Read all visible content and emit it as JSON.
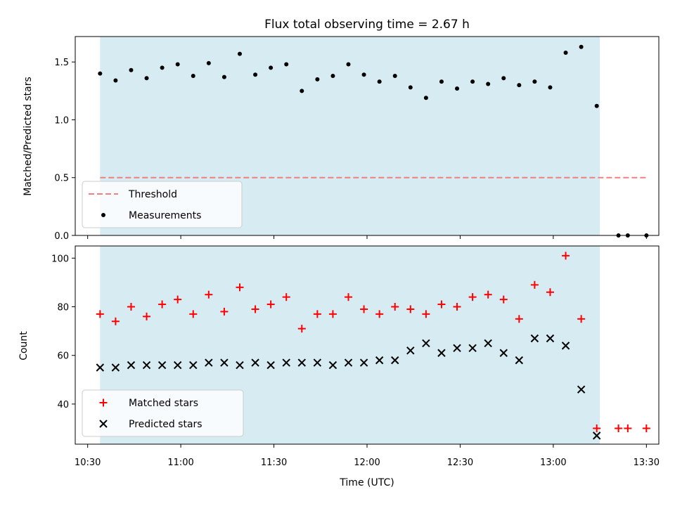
{
  "chart_data": {
    "title": "Flux total observing time = 2.67 h",
    "xlabel": "Time (UTC)",
    "xlim": [
      "10:26",
      "13:34"
    ],
    "x_ticks": [
      "10:30",
      "11:00",
      "11:30",
      "12:00",
      "12:30",
      "13:00",
      "13:30"
    ],
    "observing_window": {
      "start": "10:34",
      "end": "13:15",
      "color": "#add8e6"
    },
    "subplots": [
      {
        "type": "scatter",
        "ylabel": "Matched/Predicted stars",
        "ylim": [
          0,
          1.72
        ],
        "y_ticks": [
          0.0,
          0.5,
          1.0,
          1.5
        ],
        "legend_position": "lower-left",
        "threshold": {
          "name": "Threshold",
          "value": 0.5,
          "x_start": "10:34",
          "x_end": "13:30",
          "color": "#f08080",
          "style": "dashed"
        },
        "series": [
          {
            "name": "Measurements",
            "marker": "dot",
            "color": "#000000",
            "points": [
              [
                "10:34",
                1.4
              ],
              [
                "10:39",
                1.34
              ],
              [
                "10:44",
                1.43
              ],
              [
                "10:49",
                1.36
              ],
              [
                "10:54",
                1.45
              ],
              [
                "10:59",
                1.48
              ],
              [
                "11:04",
                1.38
              ],
              [
                "11:09",
                1.49
              ],
              [
                "11:14",
                1.37
              ],
              [
                "11:19",
                1.57
              ],
              [
                "11:24",
                1.39
              ],
              [
                "11:29",
                1.45
              ],
              [
                "11:34",
                1.48
              ],
              [
                "11:39",
                1.25
              ],
              [
                "11:44",
                1.35
              ],
              [
                "11:49",
                1.38
              ],
              [
                "11:54",
                1.48
              ],
              [
                "11:59",
                1.39
              ],
              [
                "12:04",
                1.33
              ],
              [
                "12:09",
                1.38
              ],
              [
                "12:14",
                1.28
              ],
              [
                "12:19",
                1.19
              ],
              [
                "12:24",
                1.33
              ],
              [
                "12:29",
                1.27
              ],
              [
                "12:34",
                1.33
              ],
              [
                "12:39",
                1.31
              ],
              [
                "12:44",
                1.36
              ],
              [
                "12:49",
                1.3
              ],
              [
                "12:54",
                1.33
              ],
              [
                "12:59",
                1.28
              ],
              [
                "13:04",
                1.58
              ],
              [
                "13:09",
                1.63
              ],
              [
                "13:14",
                1.12
              ],
              [
                "13:21",
                0.0
              ],
              [
                "13:24",
                0.0
              ],
              [
                "13:30",
                0.0
              ]
            ]
          }
        ]
      },
      {
        "type": "scatter",
        "ylabel": "Count",
        "ylim": [
          23.5,
          105
        ],
        "y_ticks": [
          40,
          60,
          80,
          100
        ],
        "legend_position": "lower-left",
        "series": [
          {
            "name": "Matched stars",
            "marker": "plus",
            "color": "#ff0000",
            "points": [
              [
                "10:34",
                77
              ],
              [
                "10:39",
                74
              ],
              [
                "10:44",
                80
              ],
              [
                "10:49",
                76
              ],
              [
                "10:54",
                81
              ],
              [
                "10:59",
                83
              ],
              [
                "11:04",
                77
              ],
              [
                "11:09",
                85
              ],
              [
                "11:14",
                78
              ],
              [
                "11:19",
                88
              ],
              [
                "11:24",
                79
              ],
              [
                "11:29",
                81
              ],
              [
                "11:34",
                84
              ],
              [
                "11:39",
                71
              ],
              [
                "11:44",
                77
              ],
              [
                "11:49",
                77
              ],
              [
                "11:54",
                84
              ],
              [
                "11:59",
                79
              ],
              [
                "12:04",
                77
              ],
              [
                "12:09",
                80
              ],
              [
                "12:14",
                79
              ],
              [
                "12:19",
                77
              ],
              [
                "12:24",
                81
              ],
              [
                "12:29",
                80
              ],
              [
                "12:34",
                84
              ],
              [
                "12:39",
                85
              ],
              [
                "12:44",
                83
              ],
              [
                "12:49",
                75
              ],
              [
                "12:54",
                89
              ],
              [
                "12:59",
                86
              ],
              [
                "13:04",
                101
              ],
              [
                "13:09",
                75
              ],
              [
                "13:14",
                30
              ],
              [
                "13:21",
                30
              ],
              [
                "13:24",
                30
              ],
              [
                "13:30",
                30
              ]
            ]
          },
          {
            "name": "Predicted stars",
            "marker": "x",
            "color": "#000000",
            "points": [
              [
                "10:34",
                55
              ],
              [
                "10:39",
                55
              ],
              [
                "10:44",
                56
              ],
              [
                "10:49",
                56
              ],
              [
                "10:54",
                56
              ],
              [
                "10:59",
                56
              ],
              [
                "11:04",
                56
              ],
              [
                "11:09",
                57
              ],
              [
                "11:14",
                57
              ],
              [
                "11:19",
                56
              ],
              [
                "11:24",
                57
              ],
              [
                "11:29",
                56
              ],
              [
                "11:34",
                57
              ],
              [
                "11:39",
                57
              ],
              [
                "11:44",
                57
              ],
              [
                "11:49",
                56
              ],
              [
                "11:54",
                57
              ],
              [
                "11:59",
                57
              ],
              [
                "12:04",
                58
              ],
              [
                "12:09",
                58
              ],
              [
                "12:14",
                62
              ],
              [
                "12:19",
                65
              ],
              [
                "12:24",
                61
              ],
              [
                "12:29",
                63
              ],
              [
                "12:34",
                63
              ],
              [
                "12:39",
                65
              ],
              [
                "12:44",
                61
              ],
              [
                "12:49",
                58
              ],
              [
                "12:54",
                67
              ],
              [
                "12:59",
                67
              ],
              [
                "13:04",
                64
              ],
              [
                "13:09",
                46
              ],
              [
                "13:14",
                27
              ]
            ]
          }
        ]
      }
    ]
  }
}
